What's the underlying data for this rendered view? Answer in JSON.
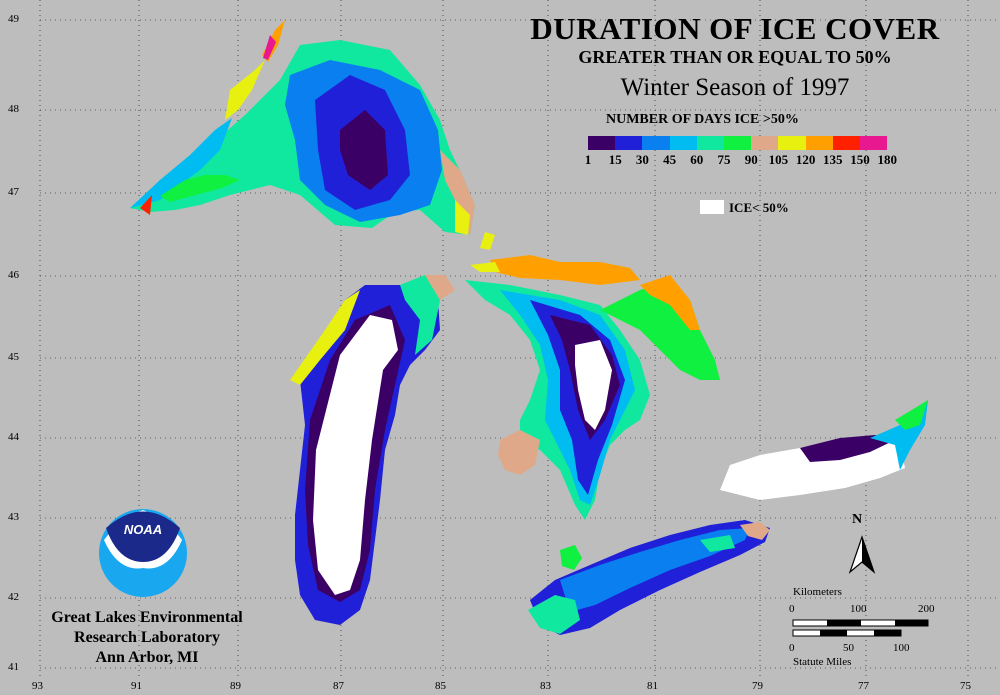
{
  "title": {
    "main": "DURATION OF ICE COVER",
    "sub": "GREATER THAN OR EQUAL TO 50%",
    "season": "Winter Season of 1997"
  },
  "legend": {
    "title": "NUMBER OF DAYS ICE >50%",
    "colors": [
      "#3b0066",
      "#2020d8",
      "#0a80f0",
      "#00bcf0",
      "#10e8a0",
      "#10f040",
      "#dfa888",
      "#e8f010",
      "#ffa000",
      "#ff2000",
      "#e81890"
    ],
    "tick_labels": [
      "1",
      "15",
      "30",
      "45",
      "60",
      "75",
      "90",
      "105",
      "120",
      "135",
      "150",
      "180"
    ],
    "ice_label": "ICE< 50%"
  },
  "lab": {
    "line1": "Great Lakes Environmental",
    "line2": "Research Laboratory",
    "line3": "Ann Arbor, MI"
  },
  "logo": {
    "text": "NOAA"
  },
  "north": {
    "label": "N"
  },
  "scale": {
    "km_label": "Kilometers",
    "km_ticks": [
      "0",
      "100",
      "200"
    ],
    "mi_ticks": [
      "0",
      "50",
      "100"
    ],
    "mi_label": "Statute Miles"
  },
  "graticule": {
    "lat_labels": [
      "49",
      "48",
      "47",
      "46",
      "45",
      "44",
      "43",
      "42",
      "41"
    ],
    "lon_labels": [
      "93",
      "91",
      "89",
      "87",
      "85",
      "83",
      "81",
      "79",
      "77",
      "75"
    ]
  },
  "colors": {
    "background": "#bdbdbd",
    "ice_below_50": "#ffffff"
  }
}
